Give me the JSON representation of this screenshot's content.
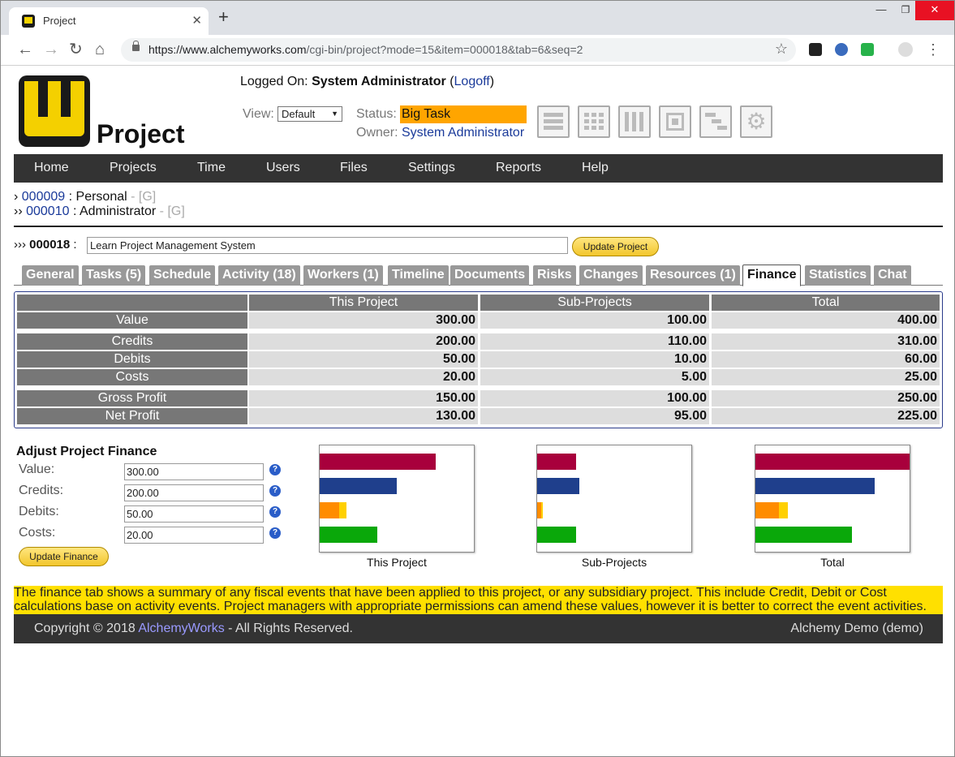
{
  "browser": {
    "tab_title": "Project",
    "url_host": "https://www.alchemyworks.com",
    "url_path": "/cgi-bin/project?mode=15&item=000018&tab=6&seq=2"
  },
  "header": {
    "brand": "Project",
    "logged_label": "Logged On:",
    "user": "System Administrator",
    "logoff_open": "(",
    "logoff": "Logoff",
    "logoff_close": ")",
    "view_label": "View:",
    "view_value": "Default",
    "status_label": "Status:",
    "status_value": "Big Task",
    "owner_label": "Owner:",
    "owner_value": "System Administrator"
  },
  "nav": [
    "Home",
    "Projects",
    "Time",
    "Users",
    "Files",
    "Settings",
    "Reports",
    "Help"
  ],
  "breadcrumbs": [
    {
      "prefix": "›",
      "id": "000009",
      "name": ": Personal",
      "sep": " - ",
      "link": "[G]"
    },
    {
      "prefix": "››",
      "id": "000010",
      "name": ": Administrator",
      "sep": " - ",
      "link": "[G]"
    }
  ],
  "project": {
    "prefix": "›››",
    "id": "000018",
    "name": "Learn Project Management System",
    "update_label": "Update Project"
  },
  "tabs": [
    "General",
    "Tasks (5)",
    "Schedule",
    "Activity (18)",
    "Workers (1)",
    "Timeline",
    "Documents",
    "Risks",
    "Changes",
    "Resources (1)",
    "Finance",
    "Statistics",
    "Chat"
  ],
  "active_tab": "Finance",
  "finance": {
    "columns": [
      "This Project",
      "Sub-Projects",
      "Total"
    ],
    "rows": [
      {
        "label": "Value",
        "values": [
          "300.00",
          "100.00",
          "400.00"
        ]
      },
      {
        "label": "Credits",
        "values": [
          "200.00",
          "110.00",
          "310.00"
        ]
      },
      {
        "label": "Debits",
        "values": [
          "50.00",
          "10.00",
          "60.00"
        ]
      },
      {
        "label": "Costs",
        "values": [
          "20.00",
          "5.00",
          "25.00"
        ]
      },
      {
        "label": "Gross Profit",
        "values": [
          "150.00",
          "100.00",
          "250.00"
        ]
      },
      {
        "label": "Net Profit",
        "values": [
          "130.00",
          "95.00",
          "225.00"
        ]
      }
    ]
  },
  "adjust": {
    "title": "Adjust Project Finance",
    "fields": [
      {
        "label": "Value:",
        "value": "300.00"
      },
      {
        "label": "Credits:",
        "value": "200.00"
      },
      {
        "label": "Debits:",
        "value": "50.00"
      },
      {
        "label": "Costs:",
        "value": "20.00"
      }
    ],
    "help_glyph": "?",
    "update_label": "Update Finance"
  },
  "chart_data": [
    {
      "type": "bar",
      "caption": "This Project",
      "scale_max": 400,
      "values": {
        "value": 300,
        "credits": 200,
        "debits": 50,
        "costs": 20,
        "gross_profit": 150
      }
    },
    {
      "type": "bar",
      "caption": "Sub-Projects",
      "scale_max": 400,
      "values": {
        "value": 100,
        "credits": 110,
        "debits": 10,
        "costs": 5,
        "gross_profit": 100
      }
    },
    {
      "type": "bar",
      "caption": "Total",
      "scale_max": 400,
      "values": {
        "value": 400,
        "credits": 310,
        "debits": 60,
        "costs": 25,
        "gross_profit": 250
      }
    }
  ],
  "colors": {
    "value": "#a8003c",
    "credits": "#1f3f8c",
    "debits": "#ff8c00",
    "costs": "#ffd000",
    "gross_profit": "#0aa80a"
  },
  "note": "The finance tab shows a summary of any fiscal events that have been applied to this project, or any subsidiary project. This include Credit, Debit or Cost calculations base on activity events. Project managers with appropriate permissions can amend these values, however it is better to correct the event activities.",
  "footer": {
    "copyright": "Copyright © 2018 ",
    "company": "AlchemyWorks",
    "rights": " - All Rights Reserved.",
    "right": "Alchemy Demo (demo)"
  }
}
